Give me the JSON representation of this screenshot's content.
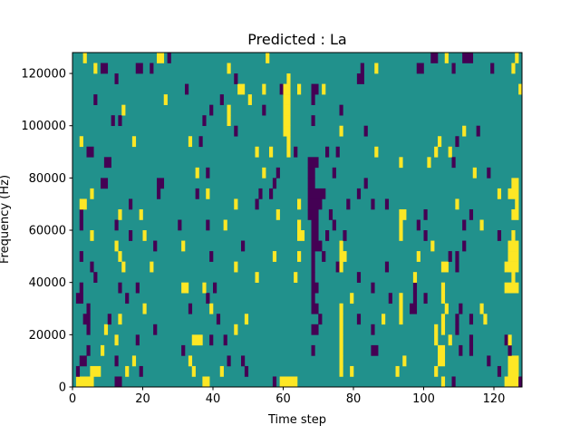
{
  "chart_data": {
    "type": "heatmap",
    "title": "Predicted : La",
    "xlabel": "Time step",
    "ylabel": "Frequency (Hz)",
    "xlim": [
      0,
      128
    ],
    "ylim": [
      0,
      128000
    ],
    "n_time_steps": 128,
    "n_freq_bins": 32,
    "x_ticks": [
      0,
      20,
      40,
      60,
      80,
      100,
      120
    ],
    "x_tick_labels": [
      "0",
      "20",
      "40",
      "60",
      "80",
      "100",
      "120"
    ],
    "y_ticks": [
      0,
      20000,
      40000,
      60000,
      80000,
      100000,
      120000
    ],
    "y_tick_labels": [
      "0",
      "20000",
      "40000",
      "60000",
      "80000",
      "100000",
      "120000"
    ],
    "colormap": {
      "low": "#440154",
      "mid": "#21918c",
      "high": "#fde725"
    },
    "background_value": 0.5,
    "cells_format": "[freq_bin, time_start, time_end, value]",
    "cells": [
      [
        0,
        0,
        21,
        1,
        1
      ],
      [
        0,
        1,
        5,
        1
      ],
      [
        0,
        12,
        13,
        0
      ],
      [
        0,
        37,
        38,
        1
      ],
      [
        0,
        57,
        57,
        0
      ],
      [
        0,
        63,
        63,
        1
      ],
      [
        0,
        105,
        105,
        1
      ],
      [
        0,
        108,
        108,
        0
      ],
      [
        0,
        123,
        126,
        1
      ],
      [
        0,
        127,
        127,
        0
      ],
      [
        1,
        1,
        1,
        0
      ],
      [
        1,
        5,
        7,
        1
      ],
      [
        1,
        15,
        15,
        1
      ],
      [
        1,
        19,
        19,
        0
      ],
      [
        1,
        34,
        34,
        1
      ],
      [
        1,
        42,
        42,
        1
      ],
      [
        1,
        49,
        49,
        0
      ],
      [
        1,
        76,
        76,
        1
      ],
      [
        1,
        79,
        79,
        1
      ],
      [
        1,
        92,
        92,
        1
      ],
      [
        1,
        103,
        103,
        1
      ],
      [
        1,
        121,
        121,
        0
      ],
      [
        1,
        124,
        126,
        1
      ],
      [
        2,
        2,
        3,
        0
      ],
      [
        2,
        12,
        12,
        0
      ],
      [
        2,
        17,
        17,
        1
      ],
      [
        2,
        33,
        33,
        1
      ],
      [
        2,
        44,
        44,
        0
      ],
      [
        2,
        48,
        48,
        0
      ],
      [
        2,
        76,
        76,
        1
      ],
      [
        2,
        94,
        94,
        1
      ],
      [
        2,
        104,
        105,
        1
      ],
      [
        2,
        118,
        118,
        0
      ],
      [
        2,
        124,
        126,
        1
      ],
      [
        3,
        4,
        4,
        0
      ],
      [
        3,
        8,
        8,
        1
      ],
      [
        3,
        31,
        31,
        0
      ],
      [
        3,
        68,
        68,
        0
      ],
      [
        3,
        76,
        76,
        1
      ],
      [
        3,
        85,
        86,
        0
      ],
      [
        3,
        104,
        105,
        1
      ],
      [
        3,
        110,
        110,
        0
      ],
      [
        3,
        113,
        113,
        0
      ],
      [
        3,
        124,
        124,
        0
      ],
      [
        4,
        12,
        12,
        1
      ],
      [
        4,
        18,
        18,
        0
      ],
      [
        4,
        34,
        36,
        1
      ],
      [
        4,
        39,
        39,
        0
      ],
      [
        4,
        43,
        43,
        0
      ],
      [
        4,
        76,
        76,
        1
      ],
      [
        4,
        103,
        103,
        1
      ],
      [
        4,
        107,
        107,
        1
      ],
      [
        4,
        113,
        113,
        0
      ],
      [
        4,
        123,
        123,
        0
      ],
      [
        4,
        124,
        124,
        1
      ],
      [
        5,
        4,
        4,
        0
      ],
      [
        5,
        9,
        9,
        1
      ],
      [
        5,
        23,
        23,
        0
      ],
      [
        5,
        46,
        46,
        1
      ],
      [
        5,
        68,
        69,
        0
      ],
      [
        5,
        76,
        76,
        1
      ],
      [
        5,
        85,
        85,
        0
      ],
      [
        5,
        103,
        103,
        1
      ],
      [
        5,
        105,
        105,
        1
      ],
      [
        5,
        109,
        109,
        0
      ],
      [
        6,
        3,
        4,
        0
      ],
      [
        6,
        10,
        10,
        0
      ],
      [
        6,
        13,
        13,
        1
      ],
      [
        6,
        41,
        41,
        0
      ],
      [
        6,
        49,
        49,
        1
      ],
      [
        6,
        70,
        70,
        0
      ],
      [
        6,
        76,
        76,
        1
      ],
      [
        6,
        81,
        81,
        0
      ],
      [
        6,
        88,
        88,
        1
      ],
      [
        6,
        93,
        93,
        1
      ],
      [
        6,
        105,
        105,
        1
      ],
      [
        6,
        109,
        109,
        0
      ],
      [
        6,
        113,
        113,
        0
      ],
      [
        6,
        117,
        117,
        1
      ],
      [
        7,
        4,
        4,
        0
      ],
      [
        7,
        20,
        20,
        1
      ],
      [
        7,
        33,
        33,
        0
      ],
      [
        7,
        39,
        39,
        1
      ],
      [
        7,
        68,
        69,
        0
      ],
      [
        7,
        76,
        76,
        1
      ],
      [
        7,
        93,
        93,
        1
      ],
      [
        7,
        96,
        97,
        0
      ],
      [
        7,
        106,
        106,
        1
      ],
      [
        7,
        110,
        110,
        0
      ],
      [
        7,
        116,
        116,
        1
      ],
      [
        8,
        1,
        2,
        0
      ],
      [
        8,
        15,
        15,
        0
      ],
      [
        8,
        38,
        38,
        0
      ],
      [
        8,
        68,
        68,
        0
      ],
      [
        8,
        79,
        79,
        1
      ],
      [
        8,
        90,
        90,
        0
      ],
      [
        8,
        93,
        93,
        1
      ],
      [
        8,
        97,
        97,
        0
      ],
      [
        8,
        100,
        100,
        0
      ],
      [
        8,
        105,
        105,
        1
      ],
      [
        9,
        2,
        2,
        0
      ],
      [
        9,
        13,
        13,
        0
      ],
      [
        9,
        18,
        18,
        0
      ],
      [
        9,
        31,
        32,
        1
      ],
      [
        9,
        37,
        37,
        1
      ],
      [
        9,
        40,
        40,
        0
      ],
      [
        9,
        68,
        69,
        0
      ],
      [
        9,
        85,
        85,
        0
      ],
      [
        9,
        97,
        97,
        0
      ],
      [
        9,
        105,
        105,
        1
      ],
      [
        9,
        123,
        126,
        1
      ],
      [
        10,
        6,
        6,
        0
      ],
      [
        10,
        52,
        52,
        1
      ],
      [
        10,
        63,
        63,
        1
      ],
      [
        10,
        68,
        68,
        0
      ],
      [
        10,
        81,
        81,
        0
      ],
      [
        10,
        97,
        97,
        1
      ],
      [
        10,
        125,
        125,
        1
      ],
      [
        11,
        5,
        5,
        0
      ],
      [
        11,
        14,
        14,
        1
      ],
      [
        11,
        22,
        22,
        1
      ],
      [
        11,
        46,
        46,
        1
      ],
      [
        11,
        68,
        68,
        0
      ],
      [
        11,
        75,
        75,
        0
      ],
      [
        11,
        76,
        76,
        1
      ],
      [
        11,
        89,
        89,
        0
      ],
      [
        11,
        105,
        106,
        1
      ],
      [
        11,
        109,
        109,
        0
      ],
      [
        11,
        123,
        126,
        1
      ],
      [
        12,
        2,
        2,
        0
      ],
      [
        12,
        13,
        13,
        1
      ],
      [
        12,
        39,
        39,
        0
      ],
      [
        12,
        57,
        57,
        1
      ],
      [
        12,
        64,
        64,
        1
      ],
      [
        12,
        68,
        68,
        0
      ],
      [
        12,
        71,
        71,
        0
      ],
      [
        12,
        76,
        77,
        1
      ],
      [
        12,
        98,
        98,
        1
      ],
      [
        12,
        107,
        107,
        0
      ],
      [
        12,
        109,
        109,
        0
      ],
      [
        12,
        124,
        126,
        1
      ],
      [
        13,
        12,
        12,
        1
      ],
      [
        13,
        23,
        23,
        0
      ],
      [
        13,
        31,
        31,
        1
      ],
      [
        13,
        48,
        48,
        0
      ],
      [
        13,
        68,
        70,
        0
      ],
      [
        13,
        76,
        76,
        1
      ],
      [
        13,
        102,
        102,
        1
      ],
      [
        13,
        111,
        111,
        0
      ],
      [
        13,
        124,
        126,
        1
      ],
      [
        14,
        5,
        5,
        1
      ],
      [
        14,
        16,
        16,
        0
      ],
      [
        14,
        20,
        20,
        1
      ],
      [
        14,
        64,
        65,
        1
      ],
      [
        14,
        68,
        69,
        0
      ],
      [
        14,
        72,
        72,
        0
      ],
      [
        14,
        77,
        77,
        0
      ],
      [
        14,
        93,
        93,
        1
      ],
      [
        14,
        100,
        100,
        0
      ],
      [
        14,
        121,
        121,
        0
      ],
      [
        14,
        125,
        125,
        1
      ],
      [
        15,
        2,
        2,
        0
      ],
      [
        15,
        12,
        12,
        0
      ],
      [
        15,
        30,
        30,
        0
      ],
      [
        15,
        38,
        38,
        0
      ],
      [
        15,
        43,
        43,
        1
      ],
      [
        15,
        64,
        64,
        1
      ],
      [
        15,
        68,
        69,
        0
      ],
      [
        15,
        74,
        74,
        0
      ],
      [
        15,
        93,
        93,
        1
      ],
      [
        15,
        98,
        98,
        0
      ],
      [
        15,
        111,
        111,
        0
      ],
      [
        15,
        116,
        116,
        1
      ],
      [
        16,
        2,
        2,
        0
      ],
      [
        16,
        13,
        13,
        1
      ],
      [
        16,
        19,
        19,
        1
      ],
      [
        16,
        58,
        58,
        1
      ],
      [
        16,
        67,
        69,
        0
      ],
      [
        16,
        73,
        73,
        0
      ],
      [
        16,
        93,
        94,
        1
      ],
      [
        16,
        100,
        100,
        0
      ],
      [
        16,
        113,
        113,
        0
      ],
      [
        16,
        125,
        126,
        1
      ],
      [
        17,
        2,
        3,
        1
      ],
      [
        17,
        16,
        16,
        0
      ],
      [
        17,
        46,
        46,
        1
      ],
      [
        17,
        52,
        52,
        0
      ],
      [
        17,
        64,
        64,
        1
      ],
      [
        17,
        67,
        70,
        0
      ],
      [
        17,
        78,
        78,
        0
      ],
      [
        17,
        85,
        85,
        0
      ],
      [
        17,
        89,
        89,
        0
      ],
      [
        17,
        109,
        109,
        1
      ],
      [
        17,
        126,
        126,
        1
      ],
      [
        18,
        5,
        5,
        1
      ],
      [
        18,
        24,
        24,
        0
      ],
      [
        18,
        35,
        35,
        0
      ],
      [
        18,
        38,
        38,
        1
      ],
      [
        18,
        53,
        53,
        0
      ],
      [
        18,
        56,
        56,
        0
      ],
      [
        18,
        67,
        71,
        0
      ],
      [
        18,
        81,
        81,
        0
      ],
      [
        18,
        121,
        121,
        1
      ],
      [
        18,
        124,
        126,
        1
      ],
      [
        19,
        8,
        9,
        0
      ],
      [
        19,
        24,
        25,
        0
      ],
      [
        19,
        57,
        57,
        0
      ],
      [
        19,
        67,
        68,
        0
      ],
      [
        19,
        83,
        83,
        0
      ],
      [
        19,
        125,
        126,
        1
      ],
      [
        20,
        35,
        35,
        1
      ],
      [
        20,
        38,
        38,
        0
      ],
      [
        20,
        54,
        54,
        1
      ],
      [
        20,
        58,
        58,
        0
      ],
      [
        20,
        67,
        68,
        0
      ],
      [
        20,
        74,
        74,
        0
      ],
      [
        20,
        114,
        114,
        1
      ],
      [
        20,
        118,
        118,
        0
      ],
      [
        21,
        9,
        10,
        0
      ],
      [
        21,
        67,
        69,
        0
      ],
      [
        21,
        93,
        93,
        1
      ],
      [
        21,
        101,
        101,
        1
      ],
      [
        21,
        108,
        108,
        0
      ],
      [
        22,
        4,
        5,
        0
      ],
      [
        22,
        52,
        52,
        1
      ],
      [
        22,
        56,
        56,
        1
      ],
      [
        22,
        61,
        61,
        1
      ],
      [
        22,
        63,
        63,
        0
      ],
      [
        22,
        72,
        72,
        0
      ],
      [
        22,
        75,
        75,
        0
      ],
      [
        22,
        86,
        86,
        1
      ],
      [
        22,
        103,
        103,
        1
      ],
      [
        22,
        107,
        107,
        1
      ],
      [
        23,
        2,
        2,
        1
      ],
      [
        23,
        17,
        17,
        1
      ],
      [
        23,
        33,
        33,
        1
      ],
      [
        23,
        36,
        36,
        0
      ],
      [
        23,
        61,
        61,
        1
      ],
      [
        23,
        104,
        104,
        1
      ],
      [
        23,
        109,
        109,
        0
      ],
      [
        24,
        46,
        46,
        0
      ],
      [
        24,
        60,
        61,
        1
      ],
      [
        24,
        76,
        76,
        1
      ],
      [
        24,
        83,
        83,
        0
      ],
      [
        24,
        111,
        111,
        1
      ],
      [
        24,
        115,
        115,
        0
      ],
      [
        25,
        11,
        11,
        0
      ],
      [
        25,
        13,
        13,
        0
      ],
      [
        25,
        37,
        37,
        0
      ],
      [
        25,
        44,
        44,
        1
      ],
      [
        25,
        60,
        61,
        1
      ],
      [
        25,
        68,
        68,
        0
      ],
      [
        26,
        14,
        14,
        1
      ],
      [
        26,
        39,
        39,
        0
      ],
      [
        26,
        44,
        44,
        1
      ],
      [
        26,
        54,
        54,
        0
      ],
      [
        26,
        60,
        61,
        1
      ],
      [
        26,
        76,
        76,
        0
      ],
      [
        27,
        6,
        6,
        0
      ],
      [
        27,
        26,
        26,
        1
      ],
      [
        27,
        42,
        42,
        0
      ],
      [
        27,
        50,
        50,
        1
      ],
      [
        27,
        60,
        61,
        1
      ],
      [
        27,
        68,
        68,
        0
      ],
      [
        28,
        32,
        32,
        0
      ],
      [
        28,
        47,
        48,
        1
      ],
      [
        28,
        54,
        54,
        1
      ],
      [
        28,
        59,
        59,
        0
      ],
      [
        28,
        60,
        61,
        1
      ],
      [
        28,
        64,
        64,
        1
      ],
      [
        28,
        68,
        69,
        0
      ],
      [
        28,
        71,
        71,
        1
      ],
      [
        28,
        127,
        127,
        1
      ],
      [
        29,
        12,
        12,
        0
      ],
      [
        29,
        46,
        46,
        0
      ],
      [
        29,
        61,
        61,
        1
      ],
      [
        29,
        81,
        82,
        0
      ],
      [
        30,
        6,
        6,
        1
      ],
      [
        30,
        8,
        9,
        0
      ],
      [
        30,
        18,
        19,
        0
      ],
      [
        30,
        22,
        22,
        0
      ],
      [
        30,
        44,
        44,
        1
      ],
      [
        30,
        82,
        82,
        0
      ],
      [
        30,
        86,
        86,
        1
      ],
      [
        30,
        98,
        99,
        0
      ],
      [
        30,
        108,
        108,
        0
      ],
      [
        30,
        119,
        119,
        0
      ],
      [
        30,
        125,
        125,
        1
      ],
      [
        31,
        3,
        3,
        1
      ],
      [
        31,
        24,
        25,
        1
      ],
      [
        31,
        27,
        27,
        0
      ],
      [
        31,
        55,
        55,
        1
      ],
      [
        31,
        102,
        103,
        0
      ],
      [
        31,
        106,
        106,
        1
      ],
      [
        31,
        111,
        113,
        0
      ],
      [
        31,
        126,
        126,
        1
      ]
    ]
  }
}
